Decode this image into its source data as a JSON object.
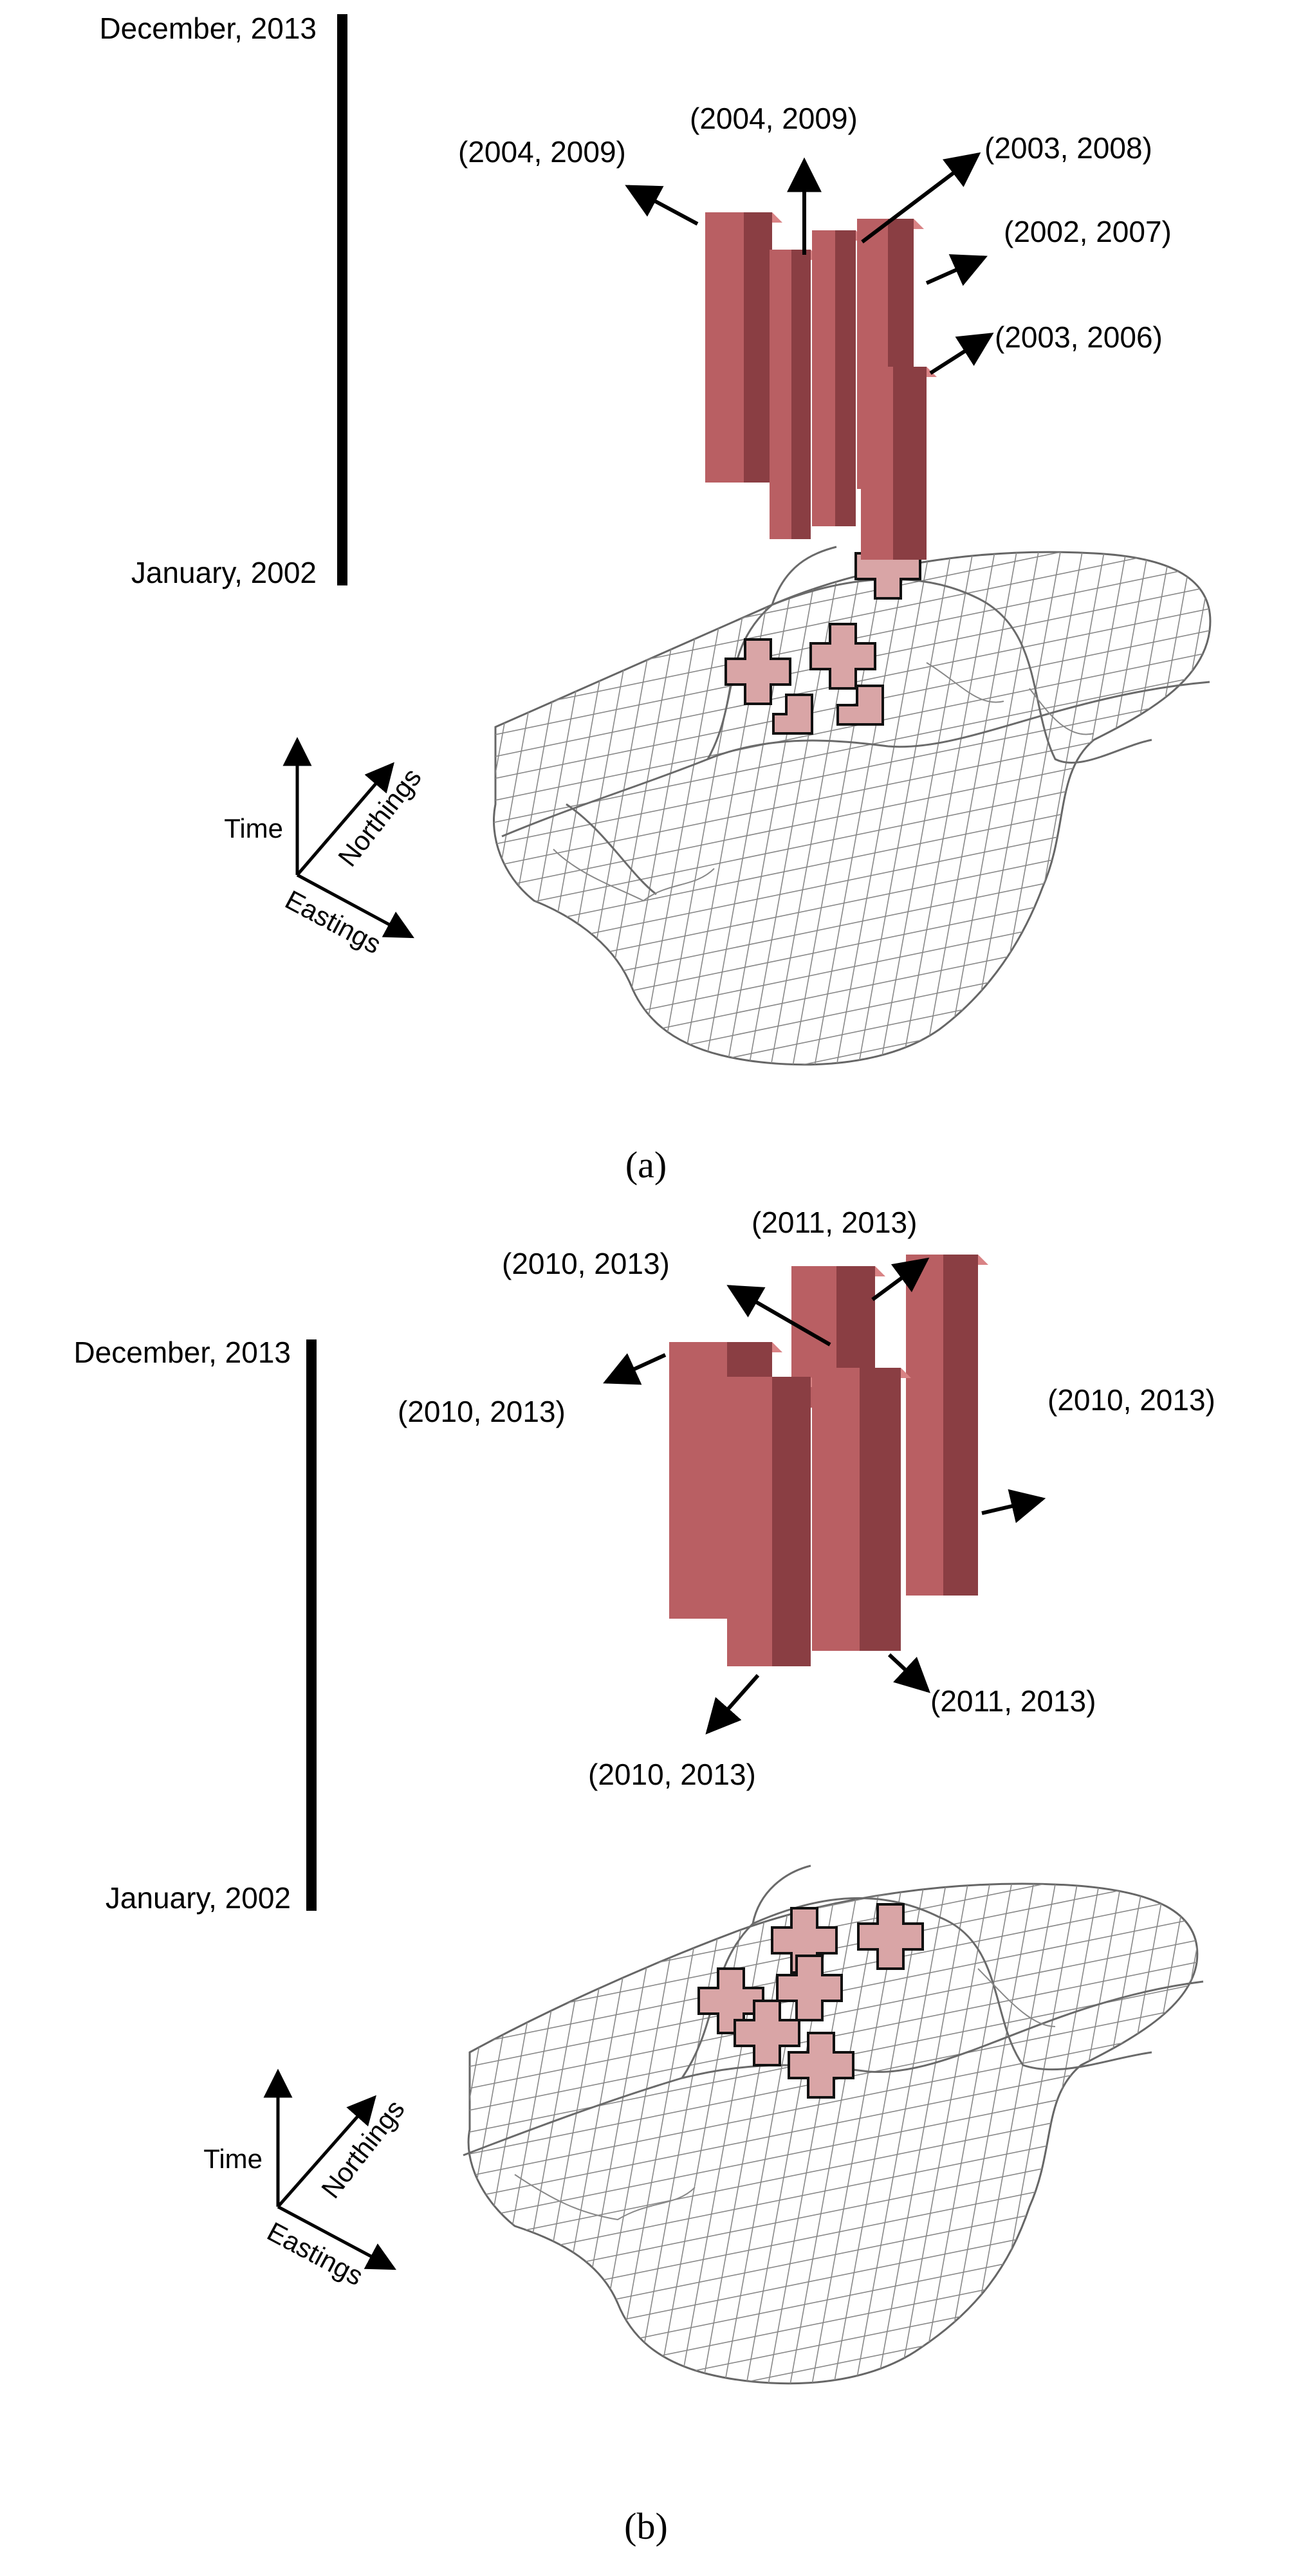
{
  "colors": {
    "prism_front": "#b95f63",
    "prism_side": "#8a3e43",
    "prism_top": "#d98385",
    "cell_fill": "#d9a5a6",
    "grid_line": "#888888",
    "boundary": "#6a6a6a"
  },
  "panels": [
    {
      "panel_label": "(a)",
      "time_axis": {
        "top_label": "December, 2013",
        "bottom_label": "January, 2002"
      },
      "axes": {
        "time": "Time",
        "northings": "Northings",
        "eastings": "Eastings"
      },
      "annotations": [
        "(2004, 2009)",
        "(2004, 2009)",
        "(2003, 2008)",
        "(2002, 2007)",
        "(2003, 2006)"
      ]
    },
    {
      "panel_label": "(b)",
      "time_axis": {
        "top_label": "December, 2013",
        "bottom_label": "January, 2002"
      },
      "axes": {
        "time": "Time",
        "northings": "Northings",
        "eastings": "Eastings"
      },
      "annotations": [
        "(2011, 2013)",
        "(2010, 2013)",
        "(2010, 2013)",
        "(2010, 2013)",
        "(2011, 2013)",
        "(2010, 2013)"
      ]
    }
  ]
}
